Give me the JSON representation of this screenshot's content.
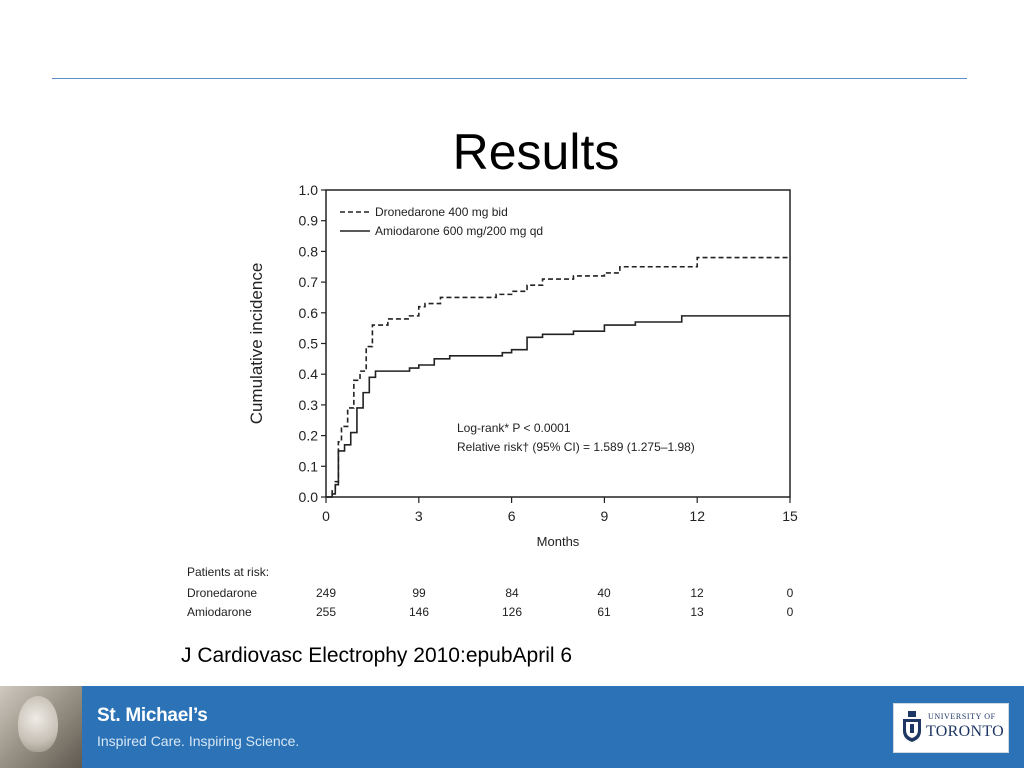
{
  "slide": {
    "title": "Results",
    "citation": "J Cardiovasc Electrophy 2010:epubApril 6"
  },
  "footer": {
    "brand_name": "St. Michael’s",
    "tagline": "Inspired Care. Inspiring Science.",
    "university_small": "UNIVERSITY OF",
    "university_big": "TORONTO",
    "background_color": "#2b73b6"
  },
  "chart_data": {
    "type": "line",
    "xlabel": "Months",
    "ylabel": "Cumulative incidence",
    "xlim": [
      0,
      15
    ],
    "ylim": [
      0,
      1.0
    ],
    "x_ticks": [
      "0",
      "3",
      "6",
      "9",
      "12",
      "15"
    ],
    "y_ticks": [
      "0.0",
      "0.1",
      "0.2",
      "0.3",
      "0.4",
      "0.5",
      "0.6",
      "0.7",
      "0.8",
      "0.9",
      "1.0"
    ],
    "legend_position": "top-left",
    "series": [
      {
        "name": "Dronedarone 400 mg bid",
        "style": "dashed",
        "color": "#222222",
        "x": [
          0,
          0.2,
          0.3,
          0.4,
          0.5,
          0.7,
          0.9,
          1.1,
          1.3,
          1.5,
          2.0,
          2.7,
          3.0,
          3.2,
          3.7,
          4.5,
          5.5,
          6.0,
          6.5,
          7.0,
          8.0,
          9.0,
          9.5,
          10.5,
          11.5,
          12.0,
          15.0
        ],
        "y": [
          0,
          0.02,
          0.05,
          0.18,
          0.23,
          0.29,
          0.38,
          0.41,
          0.49,
          0.56,
          0.58,
          0.59,
          0.62,
          0.63,
          0.65,
          0.65,
          0.66,
          0.67,
          0.69,
          0.71,
          0.72,
          0.73,
          0.75,
          0.75,
          0.75,
          0.78,
          0.78
        ]
      },
      {
        "name": "Amiodarone 600 mg/200 mg qd",
        "style": "solid",
        "color": "#222222",
        "x": [
          0,
          0.2,
          0.3,
          0.4,
          0.6,
          0.8,
          1.0,
          1.2,
          1.4,
          1.6,
          2.0,
          2.7,
          3.0,
          3.5,
          4.0,
          5.0,
          5.7,
          6.0,
          6.5,
          7.0,
          8.0,
          9.0,
          10.0,
          11.0,
          11.5,
          15.0
        ],
        "y": [
          0,
          0.01,
          0.04,
          0.15,
          0.17,
          0.21,
          0.29,
          0.34,
          0.39,
          0.41,
          0.41,
          0.42,
          0.43,
          0.45,
          0.46,
          0.46,
          0.47,
          0.48,
          0.52,
          0.53,
          0.54,
          0.56,
          0.57,
          0.57,
          0.59,
          0.59
        ]
      }
    ],
    "annotations": [
      "Log-rank* P < 0.0001",
      "Relative risk† (95% CI) = 1.589 (1.275–1.98)"
    ],
    "at_risk": {
      "heading": "Patients at risk:",
      "rows": [
        {
          "label": "Dronedarone",
          "values": [
            "249",
            "99",
            "84",
            "40",
            "12",
            "0"
          ]
        },
        {
          "label": "Amiodarone",
          "values": [
            "255",
            "146",
            "126",
            "61",
            "13",
            "0"
          ]
        }
      ]
    }
  }
}
